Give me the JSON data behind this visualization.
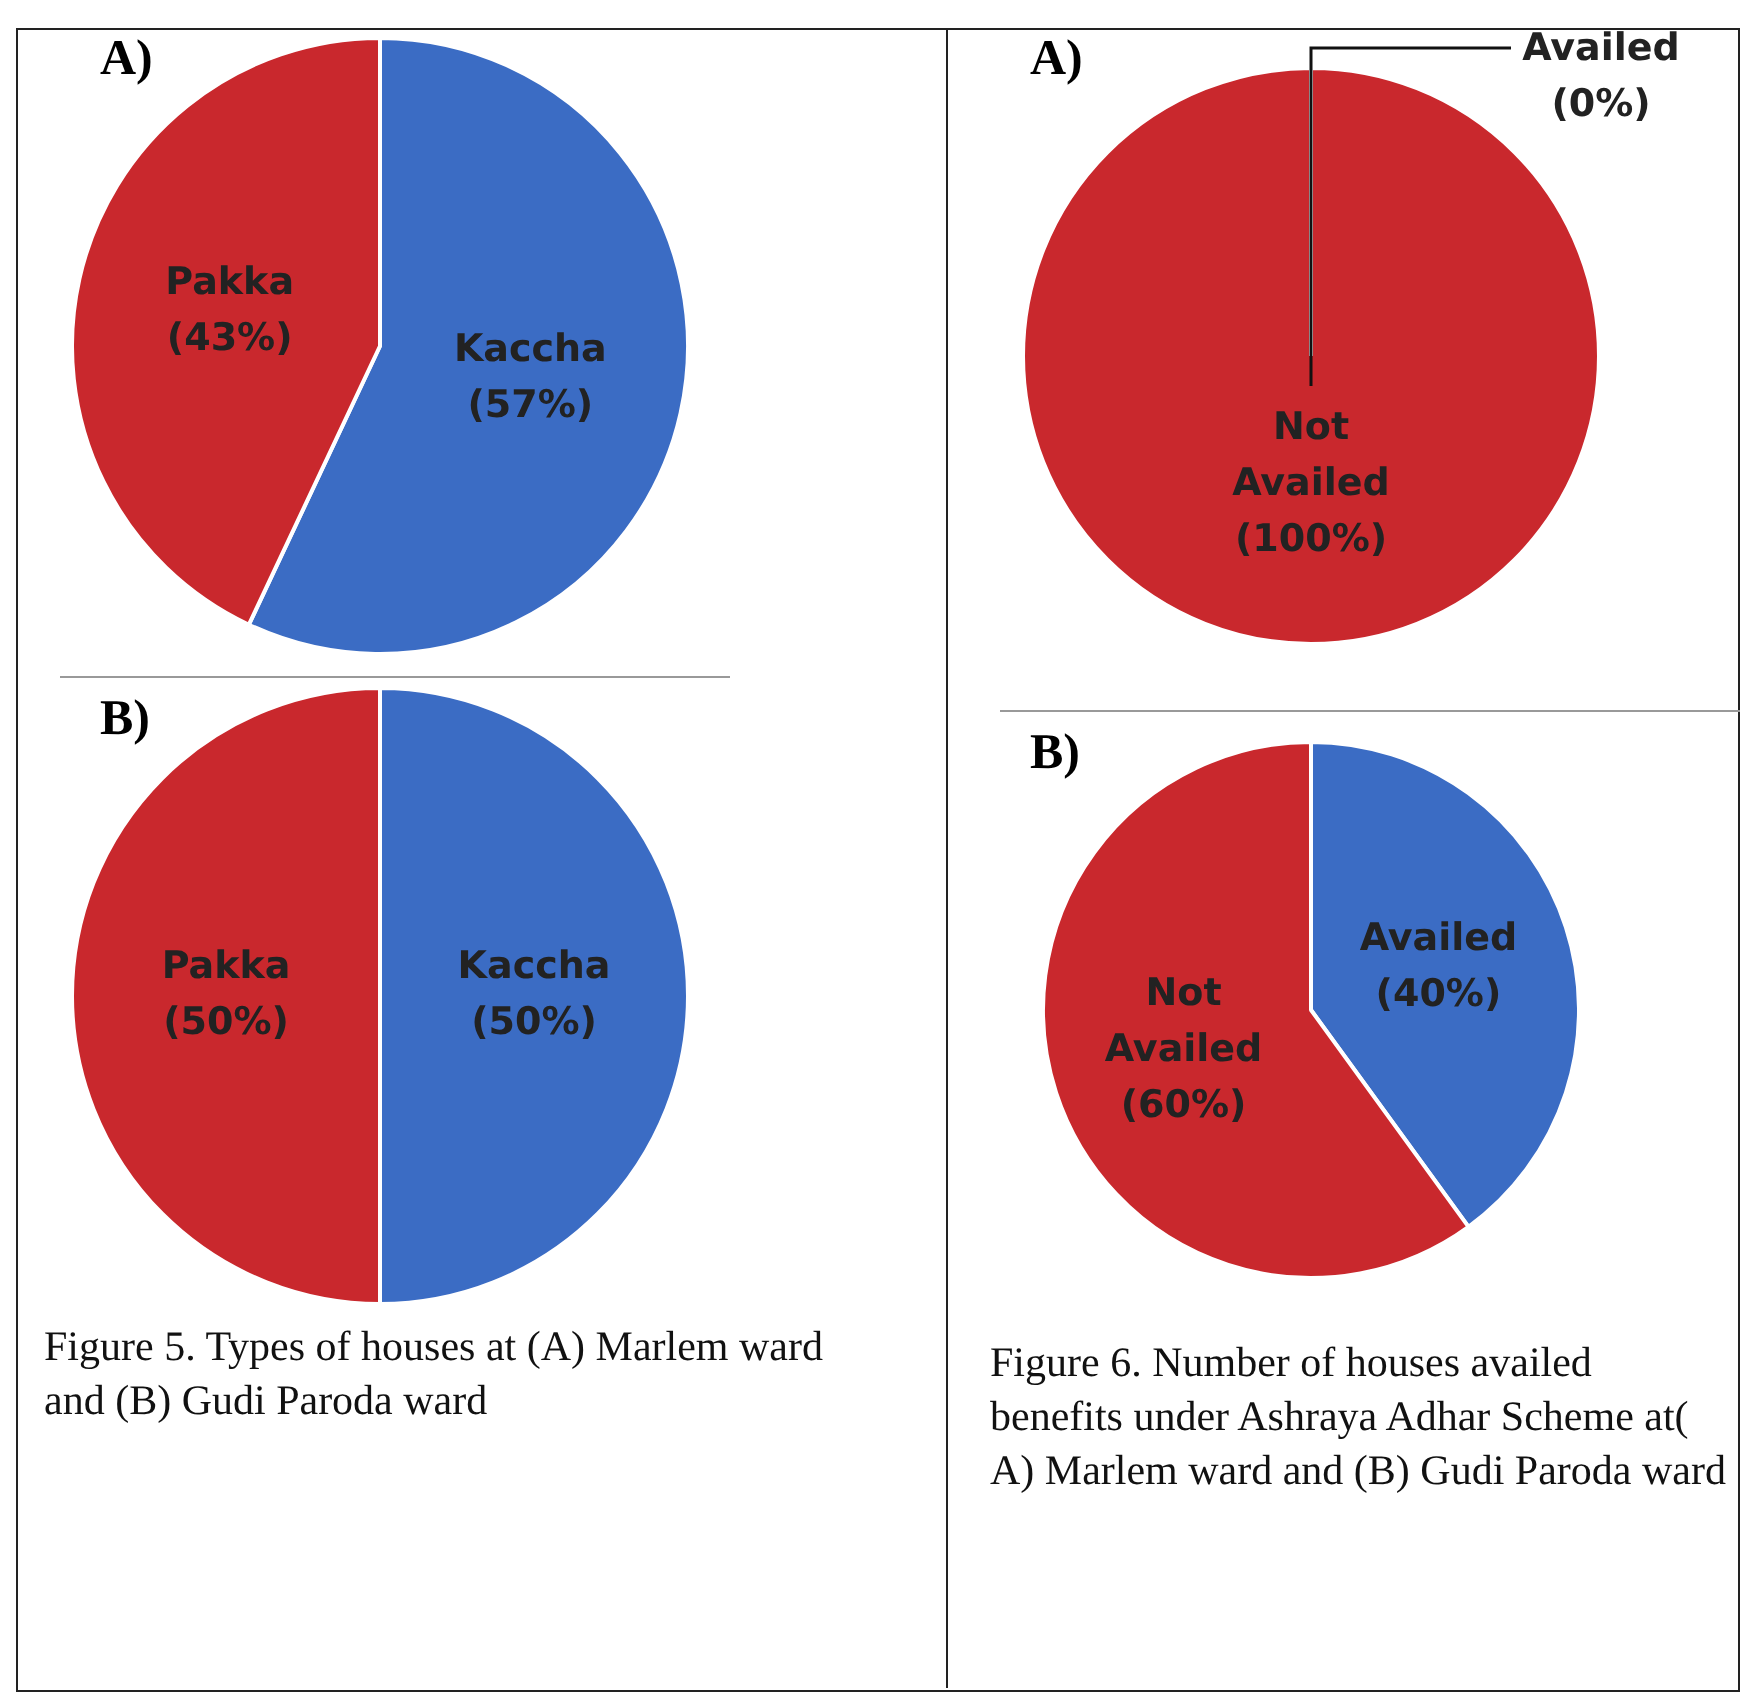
{
  "chart_data": [
    {
      "type": "pie",
      "title": "A)",
      "categories": [
        "Kaccha",
        "Pakka"
      ],
      "values": [
        57,
        43
      ],
      "colors": [
        "#3b6cc4",
        "#c9282d"
      ],
      "value_labels": [
        "(57%)",
        "(43%)"
      ],
      "legend": false
    },
    {
      "type": "pie",
      "title": "B)",
      "categories": [
        "Kaccha",
        "Pakka"
      ],
      "values": [
        50,
        50
      ],
      "colors": [
        "#3b6cc4",
        "#c9282d"
      ],
      "value_labels": [
        "(50%)",
        "(50%)"
      ],
      "legend": false,
      "annotations": [
        "Figure 5. Types of houses at (A) Marlem ward and (B) Gudi Paroda ward"
      ]
    },
    {
      "type": "pie",
      "title": "A)",
      "categories": [
        "Availed",
        "Not Availed"
      ],
      "values": [
        0,
        100
      ],
      "colors": [
        "#3b6cc4",
        "#c9282d"
      ],
      "value_labels": [
        "(0%)",
        "(100%)"
      ],
      "legend": false
    },
    {
      "type": "pie",
      "title": "B)",
      "categories": [
        "Availed",
        "Not Availed"
      ],
      "values": [
        40,
        60
      ],
      "colors": [
        "#3b6cc4",
        "#c9282d"
      ],
      "value_labels": [
        "(40%)",
        "(60%)"
      ],
      "legend": false,
      "annotations": [
        "Figure 6. Number of houses availed benefits under Ashraya Adhar Scheme at( A) Marlem ward and (B) Gudi Paroda ward"
      ]
    }
  ]
}
